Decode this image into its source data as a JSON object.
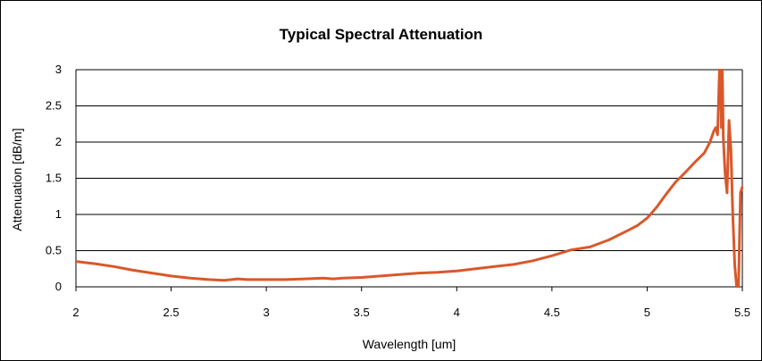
{
  "chart_data": {
    "type": "line",
    "title": "Typical Spectral Attenuation",
    "xlabel": "Wavelength [um]",
    "ylabel": "Attenuation [dB/m]",
    "xlim": [
      2,
      5.5
    ],
    "ylim": [
      0,
      3
    ],
    "x_ticks": [
      "2",
      "2.5",
      "3",
      "3.5",
      "4",
      "4.5",
      "5",
      "5.5"
    ],
    "y_ticks": [
      "0",
      "0.5",
      "1",
      "1.5",
      "2",
      "2.5",
      "3"
    ],
    "grid": "horizontal",
    "legend": "none",
    "line_color": "#D9582B",
    "series": [
      {
        "x": [
          2.0,
          2.1,
          2.2,
          2.3,
          2.4,
          2.5,
          2.6,
          2.7,
          2.78,
          2.85,
          2.9,
          3.0,
          3.1,
          3.2,
          3.3,
          3.35,
          3.4,
          3.5,
          3.6,
          3.7,
          3.8,
          3.9,
          4.0,
          4.1,
          4.2,
          4.3,
          4.4,
          4.5,
          4.6,
          4.7,
          4.8,
          4.9,
          4.95,
          5.0,
          5.05,
          5.1,
          5.15,
          5.2,
          5.25,
          5.3,
          5.33,
          5.35,
          5.36,
          5.37,
          5.38,
          5.385,
          5.39,
          5.395,
          5.4,
          5.41,
          5.42,
          5.43,
          5.44,
          5.45,
          5.46,
          5.47,
          5.48,
          5.49,
          5.5
        ],
        "y": [
          0.35,
          0.32,
          0.28,
          0.23,
          0.19,
          0.15,
          0.12,
          0.1,
          0.09,
          0.11,
          0.1,
          0.1,
          0.1,
          0.11,
          0.12,
          0.11,
          0.12,
          0.13,
          0.15,
          0.17,
          0.19,
          0.2,
          0.22,
          0.25,
          0.28,
          0.31,
          0.36,
          0.43,
          0.51,
          0.55,
          0.65,
          0.78,
          0.85,
          0.95,
          1.1,
          1.28,
          1.45,
          1.58,
          1.72,
          1.85,
          2.0,
          2.15,
          2.2,
          2.1,
          3.0,
          3.0,
          2.2,
          3.0,
          2.05,
          1.55,
          1.3,
          2.3,
          1.9,
          1.0,
          0.3,
          0.0,
          0.0,
          1.3,
          1.38
        ]
      }
    ]
  }
}
